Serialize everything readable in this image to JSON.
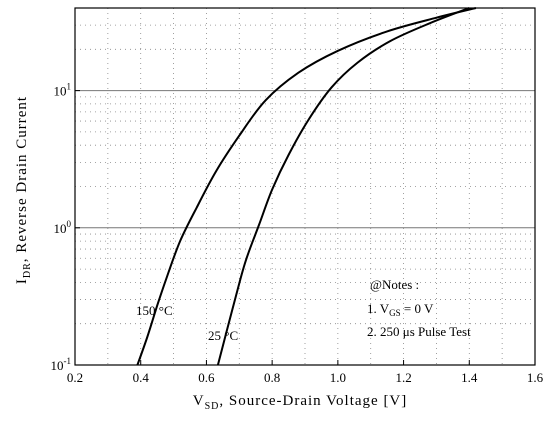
{
  "chart_data": {
    "type": "line",
    "xlabel": "V",
    "xlabel_sub": "SD",
    "xlabel_rest": ", Source-Drain Voltage  [V]",
    "ylabel": "I",
    "ylabel_sub": "DR",
    "ylabel_rest": ",  Reverse Drain Current",
    "xlim": [
      0.2,
      1.6
    ],
    "ylim": [
      0.1,
      40
    ],
    "yscale": "log",
    "grid": "dotted minor, solid at decades",
    "x_ticks": [
      {
        "v": 0.2,
        "label": "0.2"
      },
      {
        "v": 0.4,
        "label": "0.4"
      },
      {
        "v": 0.6,
        "label": "0.6"
      },
      {
        "v": 0.8,
        "label": "0.8"
      },
      {
        "v": 1.0,
        "label": "1.0"
      },
      {
        "v": 1.2,
        "label": "1.2"
      },
      {
        "v": 1.4,
        "label": "1.4"
      },
      {
        "v": 1.6,
        "label": "1.6"
      }
    ],
    "y_ticks": [
      {
        "v": 0.1,
        "base": "10",
        "exp": "-1"
      },
      {
        "v": 1,
        "base": "10",
        "exp": "0"
      },
      {
        "v": 10,
        "base": "10",
        "exp": "1"
      }
    ],
    "series": [
      {
        "label": "150 °C",
        "x": [
          0.39,
          0.42,
          0.45,
          0.48,
          0.52,
          0.57,
          0.63,
          0.7,
          0.78,
          0.88,
          1.0,
          1.15,
          1.3,
          1.42
        ],
        "y": [
          0.1,
          0.16,
          0.27,
          0.44,
          0.8,
          1.4,
          2.6,
          4.7,
          8.5,
          13.5,
          19.5,
          27,
          34,
          40
        ]
      },
      {
        "label": "25 °C",
        "x": [
          0.635,
          0.66,
          0.69,
          0.72,
          0.76,
          0.8,
          0.85,
          0.91,
          0.98,
          1.06,
          1.16,
          1.28,
          1.4
        ],
        "y": [
          0.1,
          0.17,
          0.32,
          0.58,
          1.05,
          1.9,
          3.4,
          6.1,
          10.5,
          16,
          23,
          31,
          40
        ]
      }
    ],
    "annotation": {
      "title": "@Notes :",
      "line1_prefix": "1.  V",
      "line1_sub": "GS",
      "line1_rest": " = 0 V",
      "line2": "2.  250 μs  Pulse Test"
    }
  }
}
